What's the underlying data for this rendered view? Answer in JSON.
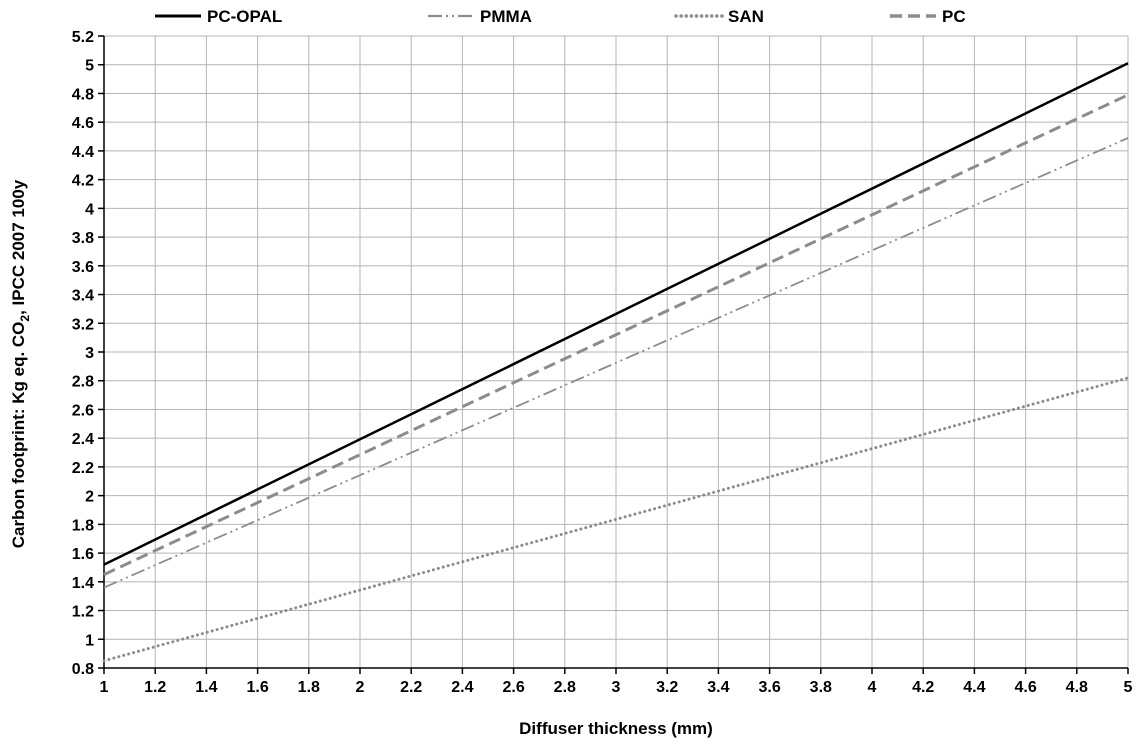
{
  "chart_data": {
    "type": "line",
    "xlabel": "Diffuser thickness (mm)",
    "ylabel": {
      "prefix": "Carbon footprint: Kg eq. CO",
      "subscript": "2",
      "suffix": ", IPCC 2007 100y"
    },
    "xlim": [
      1,
      5
    ],
    "ylim": [
      0.8,
      5.2
    ],
    "xticks": [
      "1",
      "1.2",
      "1.4",
      "1.6",
      "1.8",
      "2",
      "2.2",
      "2.4",
      "2.6",
      "2.8",
      "3",
      "3.2",
      "3.4",
      "3.6",
      "3.8",
      "4",
      "4.2",
      "4.4",
      "4.6",
      "4.8",
      "5"
    ],
    "yticks": [
      "0.8",
      "1",
      "1.2",
      "1.4",
      "1.6",
      "1.8",
      "2",
      "2.2",
      "2.4",
      "2.6",
      "2.8",
      "3",
      "3.2",
      "3.4",
      "3.6",
      "3.8",
      "4",
      "4.2",
      "4.4",
      "4.6",
      "4.8",
      "5",
      "5.2"
    ],
    "grid": true,
    "legend_position": "top",
    "series": [
      {
        "name": "PC-OPAL",
        "x": [
          1,
          5
        ],
        "y": [
          1.52,
          5.01
        ],
        "color": "#000000",
        "style": "solid"
      },
      {
        "name": "PMMA",
        "x": [
          1,
          5
        ],
        "y": [
          1.36,
          4.49
        ],
        "color": "#8c8c8c",
        "style": "dash-dot-dot"
      },
      {
        "name": "SAN",
        "x": [
          1,
          5
        ],
        "y": [
          0.85,
          2.82
        ],
        "color": "#8c8c8c",
        "style": "dotted"
      },
      {
        "name": "PC",
        "x": [
          1,
          5
        ],
        "y": [
          1.45,
          4.79
        ],
        "color": "#8c8c8c",
        "style": "dashed"
      }
    ]
  }
}
